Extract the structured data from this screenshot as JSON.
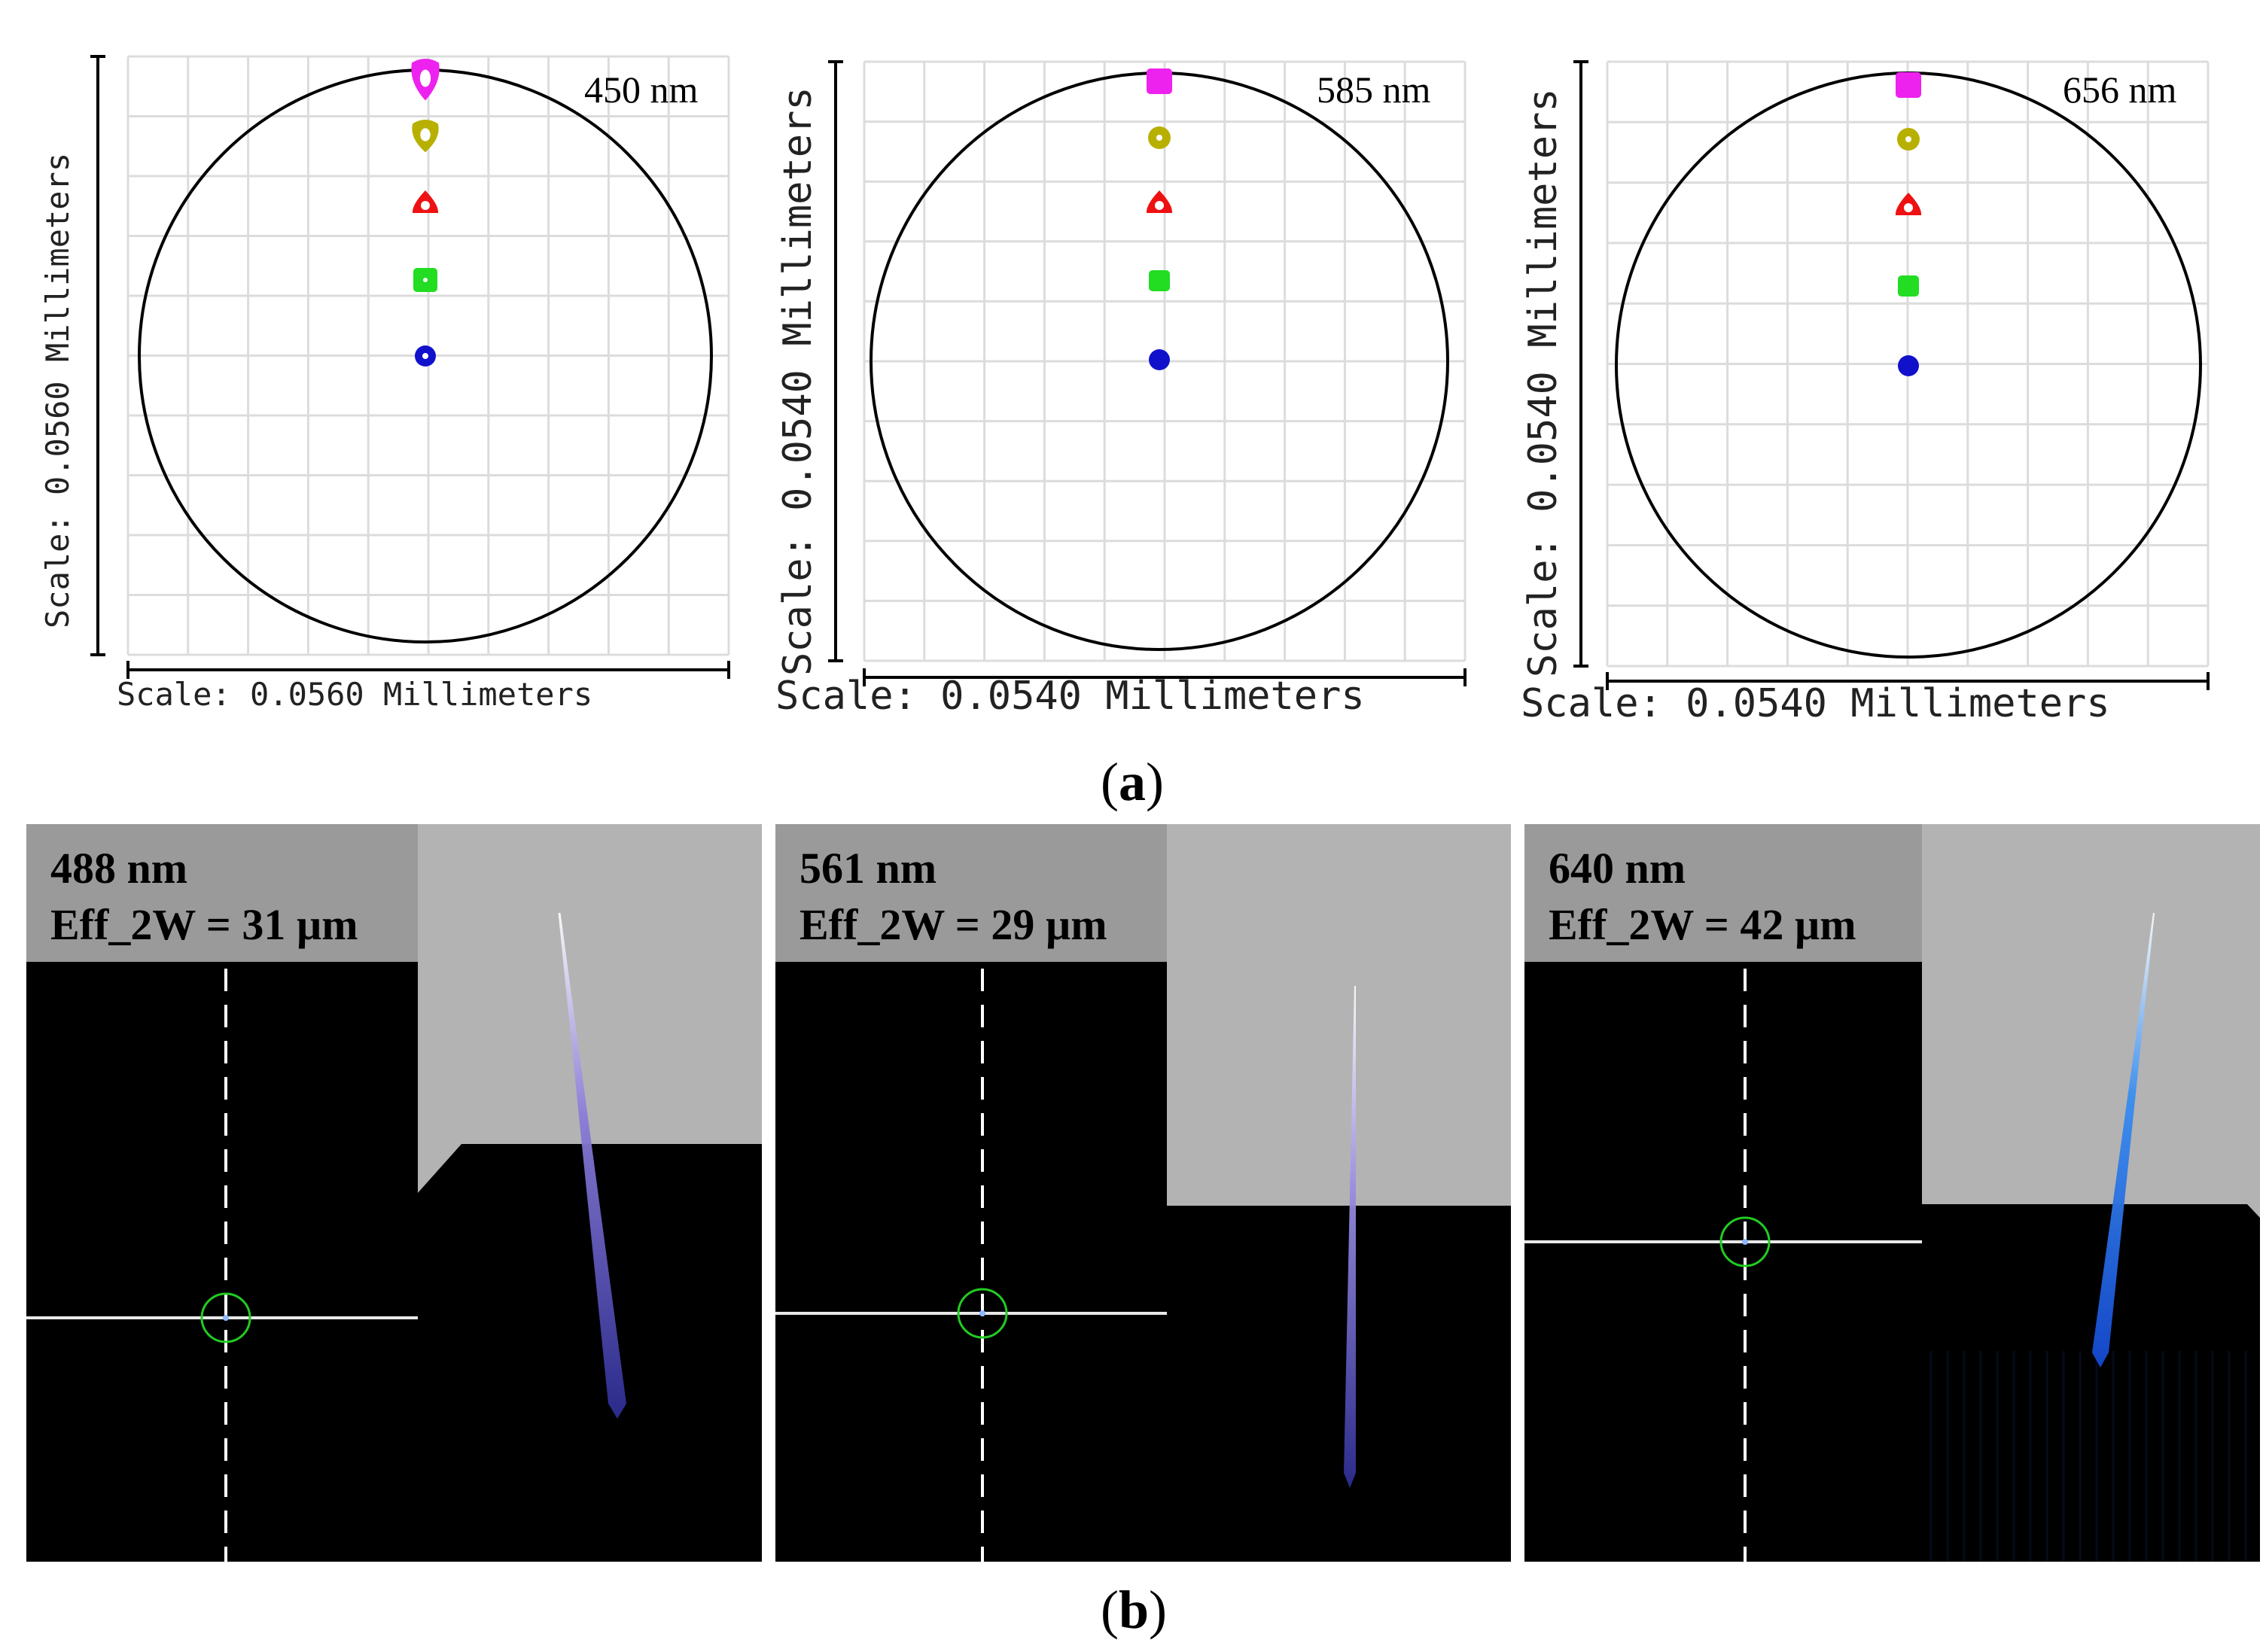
{
  "figure": {
    "label_a": "a",
    "label_b": "b"
  },
  "spot_panels": [
    {
      "wavelength": "450 nm",
      "y_scale": "Scale: 0.0560 Millimeters",
      "x_scale": "Scale: 0.0560 Millimeters",
      "spots": [
        {
          "color": "#ee22ee",
          "shape": "teardrop"
        },
        {
          "color": "#b8b000",
          "shape": "teardrop"
        },
        {
          "color": "#ee1111",
          "shape": "triangle"
        },
        {
          "color": "#22dd22",
          "shape": "square"
        },
        {
          "color": "#1111cc",
          "shape": "round"
        }
      ]
    },
    {
      "wavelength": "585 nm",
      "y_scale": "Scale: 0.0540 Millimeters",
      "x_scale": "Scale: 0.0540 Millimeters",
      "spots": [
        {
          "color": "#ee22ee",
          "shape": "square"
        },
        {
          "color": "#b8b000",
          "shape": "round"
        },
        {
          "color": "#ee1111",
          "shape": "triangle"
        },
        {
          "color": "#22dd22",
          "shape": "square"
        },
        {
          "color": "#1111cc",
          "shape": "round"
        }
      ]
    },
    {
      "wavelength": "656 nm",
      "y_scale": "Scale: 0.0540 Millimeters",
      "x_scale": "Scale: 0.0540 Millimeters",
      "spots": [
        {
          "color": "#ee22ee",
          "shape": "square"
        },
        {
          "color": "#b8b000",
          "shape": "round"
        },
        {
          "color": "#ee1111",
          "shape": "triangle"
        },
        {
          "color": "#22dd22",
          "shape": "square"
        },
        {
          "color": "#1111cc",
          "shape": "round"
        }
      ]
    }
  ],
  "beam_panels": [
    {
      "wavelength": "488 nm",
      "eff": "Eff_2W = 31 µm",
      "beam_color": "#8a7cd8"
    },
    {
      "wavelength": "561 nm",
      "eff": "Eff_2W = 29 µm",
      "beam_color": "#9a8ee0"
    },
    {
      "wavelength": "640 nm",
      "eff": "Eff_2W = 42 µm",
      "beam_color": "#3a8ef0"
    }
  ],
  "colors": {
    "grid": "#dcdcdc",
    "circle": "#000000",
    "gray_region": "#b3b3b3",
    "info_box": "#9a9a9a",
    "focus_ring": "#22cc22"
  }
}
